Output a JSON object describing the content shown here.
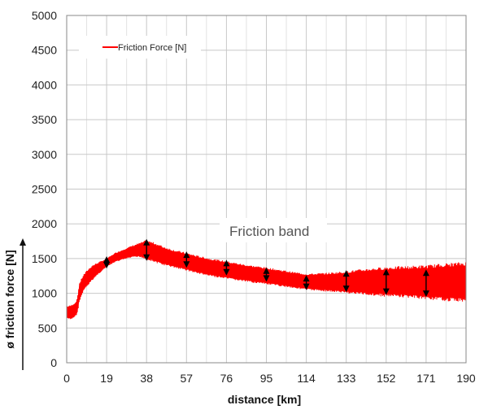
{
  "chart_data": {
    "type": "line",
    "title": "",
    "xlabel": "distance [km]",
    "ylabel": "ø friction force [N]",
    "xlim": [
      0,
      190
    ],
    "ylim": [
      0,
      5000
    ],
    "x_ticks": [
      0,
      19,
      38,
      57,
      76,
      95,
      114,
      133,
      152,
      171,
      190
    ],
    "y_ticks": [
      0,
      500,
      1000,
      1500,
      2000,
      2500,
      3000,
      3500,
      4000,
      4500,
      5000
    ],
    "grid": true,
    "legend_position": "top-left",
    "annotation": "Friction band",
    "colors": {
      "series": "#ff0000",
      "grid": "#c8c8c8",
      "arrows": "#000000"
    },
    "series": [
      {
        "name": "Friction Force [N]",
        "x": [
          0,
          2,
          4,
          5,
          6,
          8,
          10,
          12,
          15,
          19,
          23,
          27,
          31,
          35,
          38,
          42,
          46,
          50,
          57,
          62,
          68,
          76,
          85,
          95,
          105,
          114,
          124,
          133,
          143,
          152,
          162,
          171,
          180,
          190
        ],
        "band_low": [
          650,
          640,
          680,
          720,
          900,
          1050,
          1130,
          1200,
          1290,
          1390,
          1460,
          1500,
          1530,
          1540,
          1510,
          1470,
          1430,
          1400,
          1350,
          1310,
          1270,
          1230,
          1190,
          1150,
          1110,
          1070,
          1050,
          1030,
          1010,
          990,
          980,
          960,
          940,
          930
        ],
        "band_high": [
          800,
          810,
          850,
          900,
          1120,
          1250,
          1320,
          1380,
          1430,
          1490,
          1570,
          1620,
          1670,
          1710,
          1740,
          1700,
          1650,
          1610,
          1560,
          1520,
          1480,
          1440,
          1390,
          1350,
          1300,
          1260,
          1270,
          1290,
          1320,
          1340,
          1350,
          1360,
          1380,
          1400
        ]
      }
    ],
    "band_arrows": [
      {
        "x": 19,
        "low": 1380,
        "high": 1510
      },
      {
        "x": 38,
        "low": 1490,
        "high": 1760
      },
      {
        "x": 57,
        "low": 1390,
        "high": 1580
      },
      {
        "x": 76,
        "low": 1280,
        "high": 1460
      },
      {
        "x": 95,
        "low": 1190,
        "high": 1350
      },
      {
        "x": 114,
        "low": 1070,
        "high": 1240
      },
      {
        "x": 133,
        "low": 1040,
        "high": 1310
      },
      {
        "x": 152,
        "low": 1000,
        "high": 1330
      },
      {
        "x": 171,
        "low": 970,
        "high": 1320
      }
    ]
  }
}
